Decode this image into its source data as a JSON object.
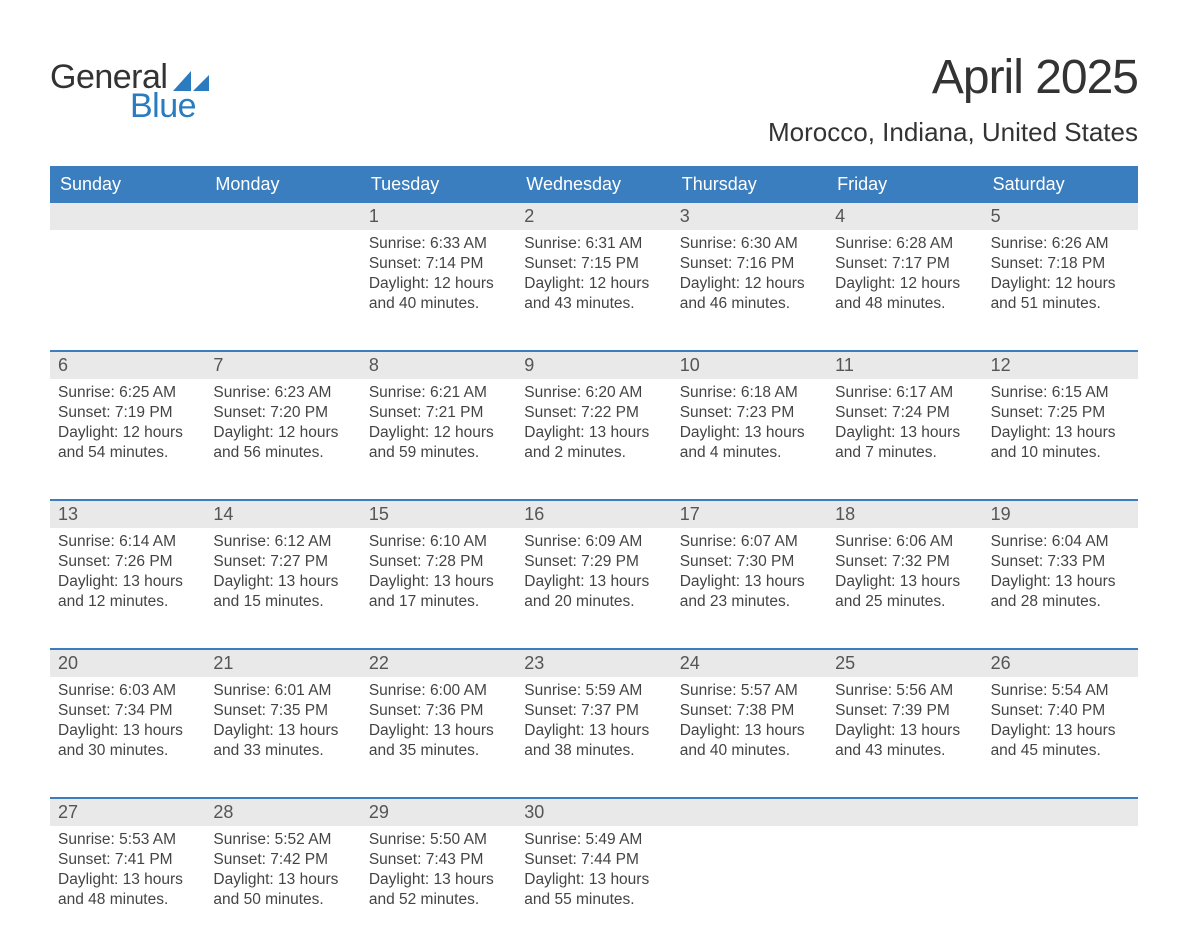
{
  "logo": {
    "general": "General",
    "blue": "Blue"
  },
  "title": "April 2025",
  "location": "Morocco, Indiana, United States",
  "colors": {
    "header_bg": "#3a7ebf",
    "header_text": "#ffffff",
    "daynum_bg": "#e9e9e9",
    "text": "#333333",
    "accent_blue": "#2a7bbf",
    "week_border": "#3a7ebf",
    "body_text": "#444444"
  },
  "day_headers": [
    "Sunday",
    "Monday",
    "Tuesday",
    "Wednesday",
    "Thursday",
    "Friday",
    "Saturday"
  ],
  "weeks": [
    [
      {
        "n": "",
        "sunrise": "",
        "sunset": "",
        "daylight": ""
      },
      {
        "n": "",
        "sunrise": "",
        "sunset": "",
        "daylight": ""
      },
      {
        "n": "1",
        "sunrise": "Sunrise: 6:33 AM",
        "sunset": "Sunset: 7:14 PM",
        "daylight": "Daylight: 12 hours and 40 minutes."
      },
      {
        "n": "2",
        "sunrise": "Sunrise: 6:31 AM",
        "sunset": "Sunset: 7:15 PM",
        "daylight": "Daylight: 12 hours and 43 minutes."
      },
      {
        "n": "3",
        "sunrise": "Sunrise: 6:30 AM",
        "sunset": "Sunset: 7:16 PM",
        "daylight": "Daylight: 12 hours and 46 minutes."
      },
      {
        "n": "4",
        "sunrise": "Sunrise: 6:28 AM",
        "sunset": "Sunset: 7:17 PM",
        "daylight": "Daylight: 12 hours and 48 minutes."
      },
      {
        "n": "5",
        "sunrise": "Sunrise: 6:26 AM",
        "sunset": "Sunset: 7:18 PM",
        "daylight": "Daylight: 12 hours and 51 minutes."
      }
    ],
    [
      {
        "n": "6",
        "sunrise": "Sunrise: 6:25 AM",
        "sunset": "Sunset: 7:19 PM",
        "daylight": "Daylight: 12 hours and 54 minutes."
      },
      {
        "n": "7",
        "sunrise": "Sunrise: 6:23 AM",
        "sunset": "Sunset: 7:20 PM",
        "daylight": "Daylight: 12 hours and 56 minutes."
      },
      {
        "n": "8",
        "sunrise": "Sunrise: 6:21 AM",
        "sunset": "Sunset: 7:21 PM",
        "daylight": "Daylight: 12 hours and 59 minutes."
      },
      {
        "n": "9",
        "sunrise": "Sunrise: 6:20 AM",
        "sunset": "Sunset: 7:22 PM",
        "daylight": "Daylight: 13 hours and 2 minutes."
      },
      {
        "n": "10",
        "sunrise": "Sunrise: 6:18 AM",
        "sunset": "Sunset: 7:23 PM",
        "daylight": "Daylight: 13 hours and 4 minutes."
      },
      {
        "n": "11",
        "sunrise": "Sunrise: 6:17 AM",
        "sunset": "Sunset: 7:24 PM",
        "daylight": "Daylight: 13 hours and 7 minutes."
      },
      {
        "n": "12",
        "sunrise": "Sunrise: 6:15 AM",
        "sunset": "Sunset: 7:25 PM",
        "daylight": "Daylight: 13 hours and 10 minutes."
      }
    ],
    [
      {
        "n": "13",
        "sunrise": "Sunrise: 6:14 AM",
        "sunset": "Sunset: 7:26 PM",
        "daylight": "Daylight: 13 hours and 12 minutes."
      },
      {
        "n": "14",
        "sunrise": "Sunrise: 6:12 AM",
        "sunset": "Sunset: 7:27 PM",
        "daylight": "Daylight: 13 hours and 15 minutes."
      },
      {
        "n": "15",
        "sunrise": "Sunrise: 6:10 AM",
        "sunset": "Sunset: 7:28 PM",
        "daylight": "Daylight: 13 hours and 17 minutes."
      },
      {
        "n": "16",
        "sunrise": "Sunrise: 6:09 AM",
        "sunset": "Sunset: 7:29 PM",
        "daylight": "Daylight: 13 hours and 20 minutes."
      },
      {
        "n": "17",
        "sunrise": "Sunrise: 6:07 AM",
        "sunset": "Sunset: 7:30 PM",
        "daylight": "Daylight: 13 hours and 23 minutes."
      },
      {
        "n": "18",
        "sunrise": "Sunrise: 6:06 AM",
        "sunset": "Sunset: 7:32 PM",
        "daylight": "Daylight: 13 hours and 25 minutes."
      },
      {
        "n": "19",
        "sunrise": "Sunrise: 6:04 AM",
        "sunset": "Sunset: 7:33 PM",
        "daylight": "Daylight: 13 hours and 28 minutes."
      }
    ],
    [
      {
        "n": "20",
        "sunrise": "Sunrise: 6:03 AM",
        "sunset": "Sunset: 7:34 PM",
        "daylight": "Daylight: 13 hours and 30 minutes."
      },
      {
        "n": "21",
        "sunrise": "Sunrise: 6:01 AM",
        "sunset": "Sunset: 7:35 PM",
        "daylight": "Daylight: 13 hours and 33 minutes."
      },
      {
        "n": "22",
        "sunrise": "Sunrise: 6:00 AM",
        "sunset": "Sunset: 7:36 PM",
        "daylight": "Daylight: 13 hours and 35 minutes."
      },
      {
        "n": "23",
        "sunrise": "Sunrise: 5:59 AM",
        "sunset": "Sunset: 7:37 PM",
        "daylight": "Daylight: 13 hours and 38 minutes."
      },
      {
        "n": "24",
        "sunrise": "Sunrise: 5:57 AM",
        "sunset": "Sunset: 7:38 PM",
        "daylight": "Daylight: 13 hours and 40 minutes."
      },
      {
        "n": "25",
        "sunrise": "Sunrise: 5:56 AM",
        "sunset": "Sunset: 7:39 PM",
        "daylight": "Daylight: 13 hours and 43 minutes."
      },
      {
        "n": "26",
        "sunrise": "Sunrise: 5:54 AM",
        "sunset": "Sunset: 7:40 PM",
        "daylight": "Daylight: 13 hours and 45 minutes."
      }
    ],
    [
      {
        "n": "27",
        "sunrise": "Sunrise: 5:53 AM",
        "sunset": "Sunset: 7:41 PM",
        "daylight": "Daylight: 13 hours and 48 minutes."
      },
      {
        "n": "28",
        "sunrise": "Sunrise: 5:52 AM",
        "sunset": "Sunset: 7:42 PM",
        "daylight": "Daylight: 13 hours and 50 minutes."
      },
      {
        "n": "29",
        "sunrise": "Sunrise: 5:50 AM",
        "sunset": "Sunset: 7:43 PM",
        "daylight": "Daylight: 13 hours and 52 minutes."
      },
      {
        "n": "30",
        "sunrise": "Sunrise: 5:49 AM",
        "sunset": "Sunset: 7:44 PM",
        "daylight": "Daylight: 13 hours and 55 minutes."
      },
      {
        "n": "",
        "sunrise": "",
        "sunset": "",
        "daylight": ""
      },
      {
        "n": "",
        "sunrise": "",
        "sunset": "",
        "daylight": ""
      },
      {
        "n": "",
        "sunrise": "",
        "sunset": "",
        "daylight": ""
      }
    ]
  ]
}
